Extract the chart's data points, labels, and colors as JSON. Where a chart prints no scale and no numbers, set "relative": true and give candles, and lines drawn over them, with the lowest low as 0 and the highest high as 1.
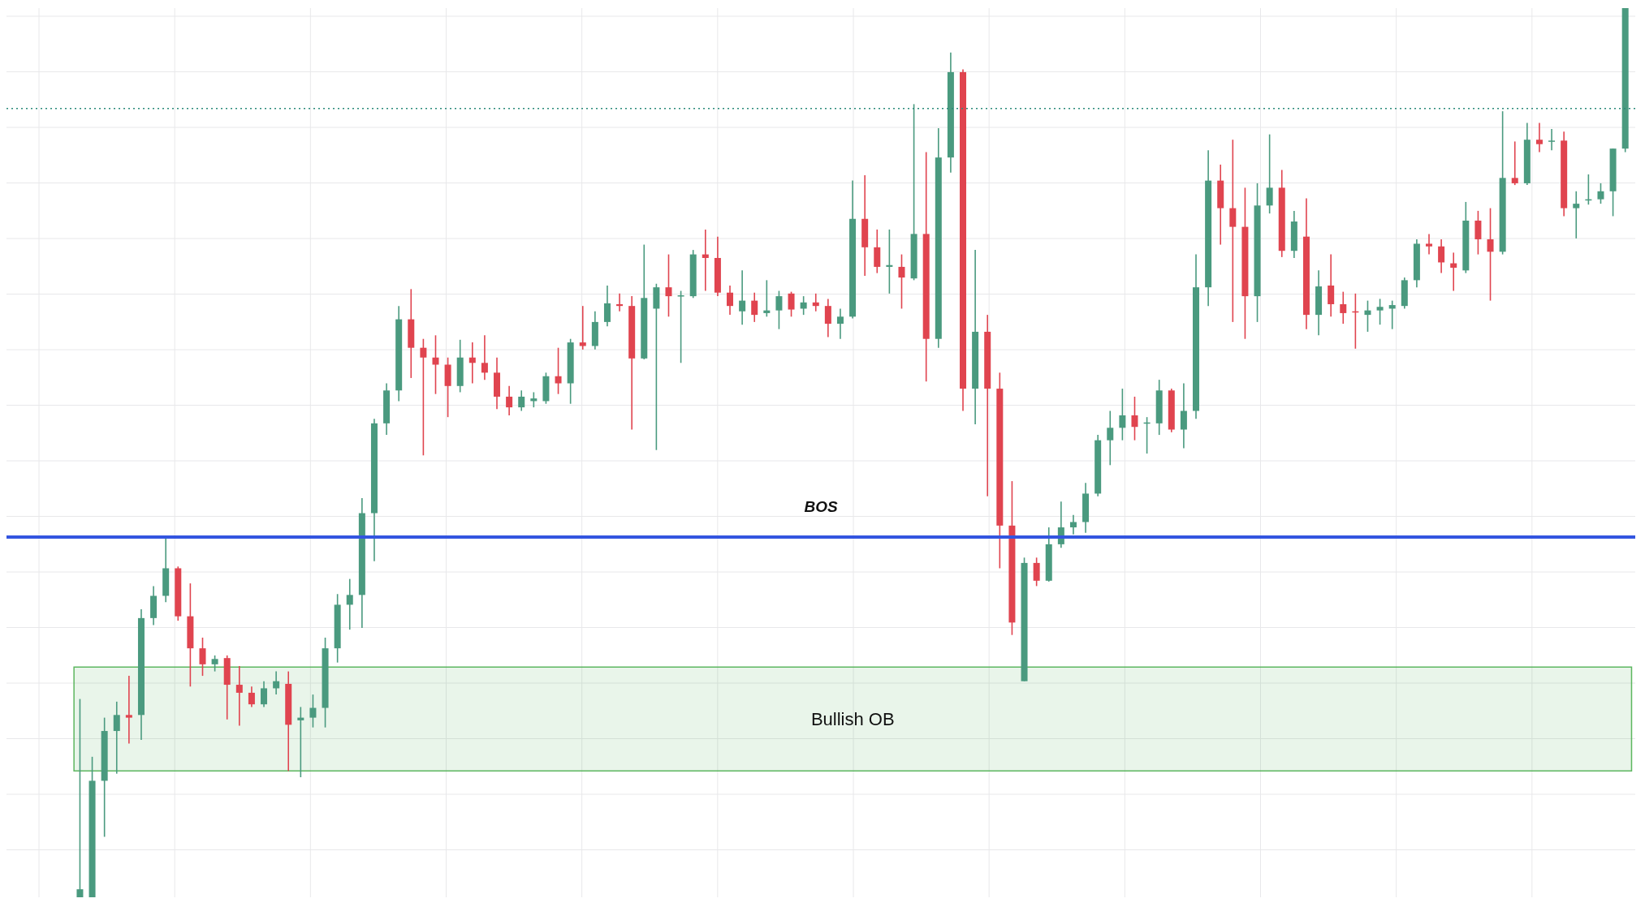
{
  "chart_data": {
    "type": "candlestick",
    "relative": true,
    "tick_labels": false,
    "grid": true,
    "categories": [
      null,
      null,
      null,
      null,
      null,
      null,
      null,
      null,
      null,
      null,
      null,
      null,
      null,
      null,
      null,
      null,
      null,
      null,
      null,
      null,
      null,
      null,
      null,
      null,
      null,
      null,
      null,
      null,
      null,
      null,
      null,
      null,
      null,
      null,
      null,
      null,
      null,
      null,
      null,
      null,
      null,
      null,
      null,
      null,
      null,
      null,
      null,
      null,
      null,
      null,
      null,
      null,
      null,
      null,
      null,
      null,
      null,
      null,
      null,
      null,
      null,
      null,
      null,
      null,
      null,
      null,
      null,
      null,
      null,
      null,
      null,
      null,
      null,
      null,
      null,
      null,
      null,
      null,
      null,
      null,
      null,
      null,
      null,
      null,
      null,
      null,
      null,
      null,
      null,
      null,
      null,
      null,
      null,
      null,
      null,
      null,
      null,
      null,
      null,
      null,
      null,
      null,
      null,
      null,
      null,
      null,
      null,
      null,
      null,
      null,
      null,
      null,
      null,
      null,
      null,
      null,
      null,
      null,
      null,
      null,
      null,
      null,
      null,
      null,
      null,
      null,
      null
    ],
    "ohlc": [
      [
        0,
        0.223,
        0,
        0.009
      ],
      [
        0,
        0.158,
        0,
        0.131
      ],
      [
        0.131,
        0.202,
        0.068,
        0.187
      ],
      [
        0.187,
        0.22,
        0.139,
        0.205
      ],
      [
        0.205,
        0.249,
        0.173,
        0.202
      ],
      [
        0.205,
        0.324,
        0.177,
        0.314
      ],
      [
        0.314,
        0.35,
        0.306,
        0.339
      ],
      [
        0.339,
        0.405,
        0.332,
        0.37
      ],
      [
        0.37,
        0.372,
        0.311,
        0.316
      ],
      [
        0.316,
        0.353,
        0.237,
        0.28
      ],
      [
        0.28,
        0.292,
        0.249,
        0.262
      ],
      [
        0.262,
        0.272,
        0.254,
        0.268
      ],
      [
        0.269,
        0.272,
        0.2,
        0.239
      ],
      [
        0.239,
        0.26,
        0.193,
        0.23
      ],
      [
        0.23,
        0.237,
        0.214,
        0.217
      ],
      [
        0.217,
        0.243,
        0.214,
        0.235
      ],
      [
        0.235,
        0.254,
        0.228,
        0.243
      ],
      [
        0.24,
        0.254,
        0.142,
        0.194
      ],
      [
        0.199,
        0.214,
        0.135,
        0.202
      ],
      [
        0.202,
        0.228,
        0.191,
        0.213
      ],
      [
        0.213,
        0.292,
        0.191,
        0.28
      ],
      [
        0.28,
        0.341,
        0.264,
        0.329
      ],
      [
        0.329,
        0.358,
        0.301,
        0.34
      ],
      [
        0.34,
        0.449,
        0.303,
        0.432
      ],
      [
        0.432,
        0.538,
        0.378,
        0.533
      ],
      [
        0.533,
        0.578,
        0.52,
        0.57
      ],
      [
        0.57,
        0.665,
        0.558,
        0.65
      ],
      [
        0.65,
        0.684,
        0.584,
        0.618
      ],
      [
        0.618,
        0.628,
        0.497,
        0.607
      ],
      [
        0.607,
        0.632,
        0.566,
        0.599
      ],
      [
        0.599,
        0.607,
        0.54,
        0.575
      ],
      [
        0.575,
        0.627,
        0.568,
        0.607
      ],
      [
        0.607,
        0.624,
        0.578,
        0.601
      ],
      [
        0.601,
        0.632,
        0.582,
        0.59
      ],
      [
        0.59,
        0.607,
        0.549,
        0.563
      ],
      [
        0.563,
        0.575,
        0.542,
        0.551
      ],
      [
        0.551,
        0.57,
        0.547,
        0.563
      ],
      [
        0.558,
        0.568,
        0.551,
        0.561
      ],
      [
        0.558,
        0.59,
        0.555,
        0.586
      ],
      [
        0.586,
        0.618,
        0.566,
        0.578
      ],
      [
        0.578,
        0.628,
        0.555,
        0.624
      ],
      [
        0.624,
        0.665,
        0.616,
        0.62
      ],
      [
        0.62,
        0.659,
        0.616,
        0.647
      ],
      [
        0.647,
        0.688,
        0.642,
        0.668
      ],
      [
        0.667,
        0.679,
        0.659,
        0.665
      ],
      [
        0.665,
        0.676,
        0.526,
        0.606
      ],
      [
        0.606,
        0.734,
        0.605,
        0.674
      ],
      [
        0.662,
        0.69,
        0.503,
        0.686
      ],
      [
        0.686,
        0.723,
        0.653,
        0.676
      ],
      [
        0.676,
        0.682,
        0.601,
        0.677
      ],
      [
        0.676,
        0.728,
        0.674,
        0.723
      ],
      [
        0.723,
        0.751,
        0.682,
        0.719
      ],
      [
        0.719,
        0.743,
        0.676,
        0.68
      ],
      [
        0.68,
        0.688,
        0.655,
        0.665
      ],
      [
        0.659,
        0.705,
        0.644,
        0.671
      ],
      [
        0.671,
        0.68,
        0.647,
        0.655
      ],
      [
        0.657,
        0.694,
        0.653,
        0.66
      ],
      [
        0.66,
        0.682,
        0.639,
        0.676
      ],
      [
        0.679,
        0.681,
        0.653,
        0.661
      ],
      [
        0.662,
        0.676,
        0.655,
        0.669
      ],
      [
        0.669,
        0.679,
        0.659,
        0.665
      ],
      [
        0.665,
        0.673,
        0.63,
        0.645
      ],
      [
        0.645,
        0.662,
        0.628,
        0.653
      ],
      [
        0.653,
        0.806,
        0.651,
        0.763
      ],
      [
        0.763,
        0.812,
        0.699,
        0.731
      ],
      [
        0.731,
        0.751,
        0.702,
        0.709
      ],
      [
        0.709,
        0.751,
        0.679,
        0.711
      ],
      [
        0.709,
        0.723,
        0.662,
        0.697
      ],
      [
        0.696,
        0.892,
        0.694,
        0.746
      ],
      [
        0.746,
        0.838,
        0.58,
        0.628
      ],
      [
        0.628,
        0.865,
        0.618,
        0.832
      ],
      [
        0.832,
        0.95,
        0.815,
        0.928
      ],
      [
        0.928,
        0.931,
        0.547,
        0.572
      ],
      [
        0.572,
        0.728,
        0.532,
        0.636
      ],
      [
        0.636,
        0.655,
        0.451,
        0.572
      ],
      [
        0.572,
        0.59,
        0.37,
        0.418
      ],
      [
        0.418,
        0.468,
        0.295,
        0.309
      ],
      [
        0.243,
        0.382,
        0.243,
        0.376
      ],
      [
        0.376,
        0.382,
        0.35,
        0.356
      ],
      [
        0.356,
        0.416,
        0.355,
        0.397
      ],
      [
        0.397,
        0.445,
        0.393,
        0.416
      ],
      [
        0.416,
        0.43,
        0.408,
        0.422
      ],
      [
        0.422,
        0.466,
        0.41,
        0.454
      ],
      [
        0.454,
        0.52,
        0.451,
        0.514
      ],
      [
        0.514,
        0.547,
        0.486,
        0.528
      ],
      [
        0.528,
        0.572,
        0.514,
        0.542
      ],
      [
        0.542,
        0.563,
        0.514,
        0.529
      ],
      [
        0.533,
        0.54,
        0.499,
        0.534
      ],
      [
        0.533,
        0.582,
        0.52,
        0.57
      ],
      [
        0.57,
        0.572,
        0.523,
        0.526
      ],
      [
        0.526,
        0.578,
        0.505,
        0.547
      ],
      [
        0.547,
        0.723,
        0.538,
        0.686
      ],
      [
        0.686,
        0.84,
        0.665,
        0.806
      ],
      [
        0.806,
        0.824,
        0.734,
        0.775
      ],
      [
        0.775,
        0.852,
        0.647,
        0.754
      ],
      [
        0.754,
        0.798,
        0.628,
        0.676
      ],
      [
        0.676,
        0.803,
        0.647,
        0.778
      ],
      [
        0.778,
        0.858,
        0.769,
        0.798
      ],
      [
        0.798,
        0.818,
        0.72,
        0.727
      ],
      [
        0.727,
        0.772,
        0.719,
        0.76
      ],
      [
        0.743,
        0.786,
        0.639,
        0.655
      ],
      [
        0.655,
        0.705,
        0.632,
        0.687
      ],
      [
        0.688,
        0.723,
        0.653,
        0.667
      ],
      [
        0.667,
        0.681,
        0.645,
        0.657
      ],
      [
        0.659,
        0.679,
        0.617,
        0.658
      ],
      [
        0.655,
        0.671,
        0.636,
        0.66
      ],
      [
        0.66,
        0.673,
        0.644,
        0.664
      ],
      [
        0.662,
        0.671,
        0.639,
        0.666
      ],
      [
        0.665,
        0.697,
        0.662,
        0.694
      ],
      [
        0.694,
        0.74,
        0.686,
        0.735
      ],
      [
        0.735,
        0.746,
        0.723,
        0.732
      ],
      [
        0.732,
        0.74,
        0.702,
        0.714
      ],
      [
        0.713,
        0.725,
        0.682,
        0.708
      ],
      [
        0.705,
        0.782,
        0.702,
        0.761
      ],
      [
        0.761,
        0.772,
        0.723,
        0.74
      ],
      [
        0.74,
        0.775,
        0.671,
        0.726
      ],
      [
        0.726,
        0.884,
        0.723,
        0.809
      ],
      [
        0.809,
        0.85,
        0.801,
        0.803
      ],
      [
        0.803,
        0.871,
        0.801,
        0.852
      ],
      [
        0.852,
        0.871,
        0.838,
        0.847
      ],
      [
        0.85,
        0.864,
        0.84,
        0.851
      ],
      [
        0.851,
        0.861,
        0.766,
        0.775
      ],
      [
        0.775,
        0.794,
        0.741,
        0.78
      ],
      [
        0.784,
        0.813,
        0.779,
        0.785
      ],
      [
        0.785,
        0.803,
        0.78,
        0.794
      ],
      [
        0.794,
        0.842,
        0.766,
        0.842
      ],
      [
        0.842,
        1,
        0.838,
        1
      ]
    ],
    "colors": [
      "#4a9a7f",
      "#4a9a7f",
      "#4a9a7f",
      "#4a9a7f",
      "#e0444f",
      "#4a9a7f",
      "#4a9a7f",
      "#4a9a7f",
      "#e0444f",
      "#e0444f",
      "#e0444f",
      "#4a9a7f",
      "#e0444f",
      "#e0444f",
      "#e0444f",
      "#4a9a7f",
      "#4a9a7f",
      "#e0444f",
      "#4a9a7f",
      "#4a9a7f",
      "#4a9a7f",
      "#4a9a7f",
      "#4a9a7f",
      "#4a9a7f",
      "#4a9a7f",
      "#4a9a7f",
      "#4a9a7f",
      "#e0444f",
      "#e0444f",
      "#e0444f",
      "#e0444f",
      "#4a9a7f",
      "#e0444f",
      "#e0444f",
      "#e0444f",
      "#e0444f",
      "#4a9a7f",
      "#4a9a7f",
      "#4a9a7f",
      "#e0444f",
      "#4a9a7f",
      "#e0444f",
      "#4a9a7f",
      "#4a9a7f",
      "#e0444f",
      "#e0444f",
      "#4a9a7f",
      "#4a9a7f",
      "#e0444f",
      "#4a9a7f",
      "#4a9a7f",
      "#e0444f",
      "#e0444f",
      "#e0444f",
      "#4a9a7f",
      "#e0444f",
      "#4a9a7f",
      "#4a9a7f",
      "#e0444f",
      "#4a9a7f",
      "#e0444f",
      "#e0444f",
      "#4a9a7f",
      "#4a9a7f",
      "#e0444f",
      "#e0444f",
      "#4a9a7f",
      "#e0444f",
      "#4a9a7f",
      "#e0444f",
      "#4a9a7f",
      "#4a9a7f",
      "#e0444f",
      "#4a9a7f",
      "#e0444f",
      "#e0444f",
      "#e0444f",
      "#4a9a7f",
      "#e0444f",
      "#4a9a7f",
      "#4a9a7f",
      "#4a9a7f",
      "#4a9a7f",
      "#4a9a7f",
      "#4a9a7f",
      "#4a9a7f",
      "#e0444f",
      "#4a9a7f",
      "#4a9a7f",
      "#e0444f",
      "#4a9a7f",
      "#4a9a7f",
      "#4a9a7f",
      "#e0444f",
      "#e0444f",
      "#e0444f",
      "#4a9a7f",
      "#4a9a7f",
      "#e0444f",
      "#4a9a7f",
      "#e0444f",
      "#4a9a7f",
      "#e0444f",
      "#e0444f",
      "#e0444f",
      "#4a9a7f",
      "#4a9a7f",
      "#4a9a7f",
      "#4a9a7f",
      "#4a9a7f",
      "#e0444f",
      "#e0444f",
      "#e0444f",
      "#4a9a7f",
      "#e0444f",
      "#e0444f",
      "#4a9a7f",
      "#e0444f",
      "#4a9a7f",
      "#e0444f",
      "#4a9a7f",
      "#e0444f",
      "#4a9a7f",
      "#4a9a7f",
      "#4a9a7f",
      "#4a9a7f",
      "#4a9a7f"
    ],
    "ref_lines": [
      {
        "axis": "y",
        "value": 0.405,
        "label": "BOS",
        "color": "#3355e0",
        "line_style": "solid"
      },
      {
        "axis": "y",
        "value": 0.887,
        "label": null,
        "color": "#2a8a7a",
        "line_style": "dotted"
      }
    ],
    "bands": [
      {
        "axis": "y",
        "from": 0.142,
        "to": 0.259,
        "label": "Bullish OB",
        "color": "#4caf50"
      }
    ]
  }
}
